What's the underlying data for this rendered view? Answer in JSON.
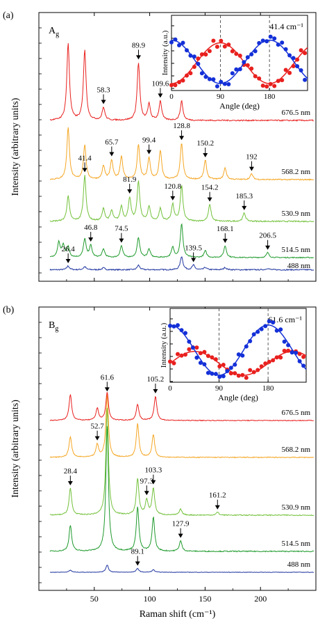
{
  "colors": {
    "red": "#e8201e",
    "orange": "#f5a623",
    "lightgreen": "#72c13a",
    "green": "#1f9a2c",
    "blue": "#1f35a0",
    "axis": "#000000",
    "inset_red": "#e8201e",
    "inset_blue": "#1430d8"
  },
  "chart_data": [
    {
      "type": "line",
      "panel_label": "(a)",
      "mode_label": "A",
      "mode_sub": "g",
      "ylabel": "Intensity (arbitrary units)",
      "xlim": [
        0,
        250
      ],
      "x_tick_values": [
        50,
        100,
        150,
        200
      ],
      "offsets": [
        0.0,
        1.0,
        2.0,
        3.15,
        4.6
      ],
      "series": [
        {
          "name": "488 nm",
          "color": "blue",
          "offset_index": 0,
          "baseline": 0.1,
          "noise": 0.03,
          "peaks": [
            [
              26.4,
              0.1
            ],
            [
              41.4,
              0.08
            ],
            [
              58.3,
              0.05
            ],
            [
              89.9,
              0.12
            ],
            [
              128.8,
              0.35
            ],
            [
              139.5,
              0.12
            ],
            [
              150.2,
              0.06
            ],
            [
              168.1,
              0.06
            ],
            [
              206.5,
              0.04
            ]
          ]
        },
        {
          "name": "514.5 nm",
          "color": "green",
          "offset_index": 1,
          "baseline": 0.0,
          "noise": 0.03,
          "peaks": [
            [
              18.0,
              0.45
            ],
            [
              22.0,
              0.35
            ],
            [
              26.4,
              0.3
            ],
            [
              41.4,
              0.55
            ],
            [
              46.8,
              0.35
            ],
            [
              58.3,
              0.25
            ],
            [
              74.5,
              0.35
            ],
            [
              89.9,
              0.6
            ],
            [
              99.4,
              0.25
            ],
            [
              120.8,
              0.3
            ],
            [
              128.8,
              1.0
            ],
            [
              150.2,
              0.2
            ],
            [
              168.1,
              0.35
            ],
            [
              206.5,
              0.15
            ]
          ]
        },
        {
          "name": "530.9 nm",
          "color": "lightgreen",
          "offset_index": 2,
          "baseline": 0.0,
          "noise": 0.03,
          "peaks": [
            [
              26.4,
              0.6
            ],
            [
              41.4,
              1.1
            ],
            [
              58.3,
              0.3
            ],
            [
              65.7,
              0.25
            ],
            [
              74.5,
              0.35
            ],
            [
              81.9,
              0.55
            ],
            [
              89.9,
              0.95
            ],
            [
              99.4,
              0.35
            ],
            [
              109.6,
              0.3
            ],
            [
              120.8,
              0.4
            ],
            [
              128.8,
              0.85
            ],
            [
              154.2,
              0.4
            ],
            [
              185.3,
              0.2
            ]
          ]
        },
        {
          "name": "568.2 nm",
          "color": "orange",
          "offset_index": 3,
          "baseline": 0.0,
          "noise": 0.03,
          "peaks": [
            [
              26.4,
              1.35
            ],
            [
              41.4,
              0.9
            ],
            [
              58.3,
              0.35
            ],
            [
              65.7,
              0.5
            ],
            [
              74.5,
              0.6
            ],
            [
              89.9,
              0.9
            ],
            [
              99.4,
              0.55
            ],
            [
              109.6,
              0.75
            ],
            [
              128.8,
              0.95
            ],
            [
              150.2,
              0.5
            ],
            [
              168.1,
              0.3
            ],
            [
              192.0,
              0.15
            ]
          ]
        },
        {
          "name": "676.5 nm",
          "color": "red",
          "offset_index": 4,
          "baseline": 0.0,
          "noise": 0.02,
          "peaks": [
            [
              26.4,
              1.2
            ],
            [
              41.4,
              1.1
            ],
            [
              58.3,
              0.2
            ],
            [
              89.9,
              0.9
            ],
            [
              99.4,
              0.25
            ],
            [
              109.6,
              0.3
            ],
            [
              128.8,
              0.3
            ]
          ]
        }
      ],
      "annotations": [
        {
          "text": "58.3",
          "x": 58.3,
          "series": "676.5 nm"
        },
        {
          "text": "89.9",
          "x": 89.9,
          "series": "676.5 nm"
        },
        {
          "text": "109.6",
          "x": 109.6,
          "series": "676.5 nm"
        },
        {
          "text": "65.7",
          "x": 65.7,
          "series": "568.2 nm"
        },
        {
          "text": "99.4",
          "x": 99.4,
          "series": "568.2 nm"
        },
        {
          "text": "128.8",
          "x": 128.8,
          "series": "568.2 nm"
        },
        {
          "text": "150.2",
          "x": 150.2,
          "series": "568.2 nm"
        },
        {
          "text": "192",
          "x": 192.0,
          "series": "568.2 nm"
        },
        {
          "text": "41.4",
          "x": 41.4,
          "series": "530.9 nm"
        },
        {
          "text": "81.9",
          "x": 81.9,
          "series": "530.9 nm"
        },
        {
          "text": "120.8",
          "x": 120.8,
          "series": "530.9 nm"
        },
        {
          "text": "154.2",
          "x": 154.2,
          "series": "530.9 nm"
        },
        {
          "text": "185.3",
          "x": 185.3,
          "series": "530.9 nm"
        },
        {
          "text": "46.8",
          "x": 46.8,
          "series": "514.5 nm"
        },
        {
          "text": "74.5",
          "x": 74.5,
          "series": "514.5 nm"
        },
        {
          "text": "168.1",
          "x": 168.1,
          "series": "514.5 nm"
        },
        {
          "text": "206.5",
          "x": 206.5,
          "series": "514.5 nm"
        },
        {
          "text": "26.4",
          "x": 26.4,
          "series": "488 nm"
        },
        {
          "text": "139.5",
          "x": 139.5,
          "series": "488 nm"
        }
      ],
      "inset": {
        "type": "scatter",
        "ylabel": "Intensity (a.u.)",
        "xlabel": "Angle (deg)",
        "xlim": [
          0,
          250
        ],
        "x_tick_values": [
          0,
          90,
          180
        ],
        "dashed_lines": [
          90,
          180
        ],
        "label": "41.4 cm⁻¹",
        "blue_curve_phase": 0,
        "red_curve_phase": 90
      }
    },
    {
      "type": "line",
      "panel_label": "(b)",
      "mode_label": "B",
      "mode_sub": "g",
      "ylabel": "Intensity (arbitrary units)",
      "xlabel": "Raman shift (cm⁻¹)",
      "xlim": [
        0,
        250
      ],
      "x_tick_values": [
        50,
        100,
        150,
        200
      ],
      "offsets": [
        0.0,
        0.55,
        1.45,
        2.45,
        3.05
      ],
      "series": [
        {
          "name": "488 nm",
          "color": "blue",
          "offset_index": 0,
          "baseline": 0.0,
          "noise": 0.02,
          "peaks": [
            [
              28.4,
              0.1
            ],
            [
              61.6,
              0.35
            ],
            [
              89.1,
              0.18
            ],
            [
              103.3,
              0.12
            ]
          ]
        },
        {
          "name": "514.5 nm",
          "color": "green",
          "offset_index": 1,
          "baseline": 0.0,
          "noise": 0.02,
          "peaks": [
            [
              28.4,
              0.5
            ],
            [
              61.6,
              2.4
            ],
            [
              89.1,
              0.85
            ],
            [
              103.3,
              0.65
            ],
            [
              127.9,
              0.2
            ]
          ]
        },
        {
          "name": "530.9 nm",
          "color": "lightgreen",
          "offset_index": 2,
          "baseline": 0.0,
          "noise": 0.02,
          "peaks": [
            [
              28.4,
              0.55
            ],
            [
              61.6,
              2.2
            ],
            [
              89.1,
              0.75
            ],
            [
              97.3,
              0.3
            ],
            [
              103.3,
              0.55
            ],
            [
              127.9,
              0.12
            ],
            [
              161.2,
              0.06
            ]
          ]
        },
        {
          "name": "568.2 nm",
          "color": "orange",
          "offset_index": 3,
          "baseline": 0.0,
          "noise": 0.02,
          "peaks": [
            [
              28.4,
              0.5
            ],
            [
              52.7,
              0.3
            ],
            [
              61.6,
              1.5
            ],
            [
              89.1,
              0.8
            ],
            [
              103.3,
              0.55
            ]
          ]
        },
        {
          "name": "676.5 nm",
          "color": "red",
          "offset_index": 4,
          "baseline": 0.0,
          "noise": 0.02,
          "peaks": [
            [
              28.4,
              0.65
            ],
            [
              52.7,
              0.3
            ],
            [
              61.6,
              0.7
            ],
            [
              89.1,
              0.4
            ],
            [
              105.2,
              0.6
            ]
          ]
        }
      ],
      "annotations": [
        {
          "text": "105.2",
          "x": 105.2,
          "series": "676.5 nm"
        },
        {
          "text": "61.6",
          "x": 61.6,
          "series": "568.2 nm"
        },
        {
          "text": "52.7",
          "x": 52.7,
          "series": "568.2 nm"
        },
        {
          "text": "28.4",
          "x": 28.4,
          "series": "530.9 nm"
        },
        {
          "text": "103.3",
          "x": 103.3,
          "series": "530.9 nm"
        },
        {
          "text": "97.3",
          "x": 97.3,
          "series": "530.9 nm"
        },
        {
          "text": "161.2",
          "x": 161.2,
          "series": "530.9 nm"
        },
        {
          "text": "127.9",
          "x": 127.9,
          "series": "514.5 nm"
        },
        {
          "text": "89.1",
          "x": 89.1,
          "series": "488 nm"
        }
      ],
      "inset": {
        "type": "scatter",
        "ylabel": "Intensity (a.u.)",
        "xlabel": "Angle (deg)",
        "xlim": [
          0,
          250
        ],
        "x_tick_values": [
          0,
          90,
          180
        ],
        "dashed_lines": [
          90,
          180
        ],
        "label": "61.6 cm⁻¹",
        "blue_curve_phase": 0,
        "red_curve_phase": 45
      }
    }
  ]
}
